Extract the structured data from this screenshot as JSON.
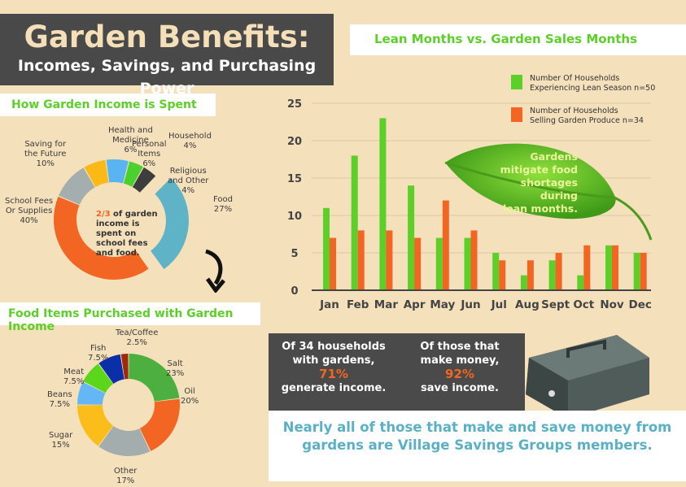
{
  "header": {
    "title": "Garden Benefits:",
    "subtitle": "Incomes, Savings, and Purchasing Power"
  },
  "colors": {
    "background": "#f5e0bc",
    "green": "#5ccf28",
    "orange": "#f26522",
    "dark": "#494949",
    "teal": "#5ab0c4"
  },
  "chart_data": [
    {
      "type": "pie",
      "title": "How Garden Income is Spent",
      "center_text": {
        "highlight": "2/3",
        "text": " of garden income is spent on school fees and food."
      },
      "slices": [
        {
          "label": "Health and\nMedicine",
          "pct": "6%",
          "value": 6,
          "color": "#fbb917"
        },
        {
          "label": "Personal\nItems",
          "pct": "6%",
          "value": 6,
          "color": "#5ab4f0"
        },
        {
          "label": "Household",
          "pct": "4%",
          "value": 4,
          "color": "#4bd12e"
        },
        {
          "label": "Religious\nand Other",
          "pct": "4%",
          "value": 4,
          "color": "#3d3d3d"
        },
        {
          "label": "Food",
          "pct": "27%",
          "value": 27,
          "color": "#5fb3c6",
          "exploded": true
        },
        {
          "label": "School Fees\nOr Supplies",
          "pct": "40%",
          "value": 40,
          "color": "#f26522"
        },
        {
          "label": "Saving for\nthe Future",
          "pct": "10%",
          "value": 10,
          "color": "#a5aeae"
        }
      ]
    },
    {
      "type": "pie",
      "title": "Food Items Purchased with Garden Income",
      "slices": [
        {
          "label": "Salt",
          "pct": "23%",
          "value": 23,
          "color": "#4caf3f"
        },
        {
          "label": "Oil",
          "pct": "20%",
          "value": 20,
          "color": "#f26522"
        },
        {
          "label": "Other",
          "pct": "17%",
          "value": 17,
          "color": "#a3adad"
        },
        {
          "label": "Sugar",
          "pct": "15%",
          "value": 15,
          "color": "#fbbd1a"
        },
        {
          "label": "Beans",
          "pct": "7.5%",
          "value": 7.5,
          "color": "#63b7f5"
        },
        {
          "label": "Meat",
          "pct": "7.5%",
          "value": 7.5,
          "color": "#5cd61b"
        },
        {
          "label": "Fish",
          "pct": "7.5%",
          "value": 7.5,
          "color": "#0a2fa8"
        },
        {
          "label": "Tea/Coffee",
          "pct": "2.5%",
          "value": 2.5,
          "color": "#9e2a0b"
        }
      ]
    },
    {
      "type": "bar",
      "title": "Lean Months vs. Garden Sales Months",
      "categories": [
        "Jan",
        "Feb",
        "Mar",
        "Apr",
        "May",
        "Jun",
        "Jul",
        "Aug",
        "Sept",
        "Oct",
        "Nov",
        "Dec"
      ],
      "yticks": [
        "0",
        "5",
        "10",
        "15",
        "20",
        "25"
      ],
      "ylim": [
        0,
        25
      ],
      "grid": true,
      "legend": "top-right",
      "series": [
        {
          "name": "Number Of Households\nExperiencing Lean Season n=50",
          "color": "#5ccf28",
          "values": [
            11,
            18,
            23,
            14,
            7,
            7,
            5,
            2,
            4,
            2,
            6,
            5
          ]
        },
        {
          "name": "Number of Households\nSelling Garden Produce n=34",
          "color": "#f26522",
          "values": [
            7,
            8,
            8,
            7,
            12,
            8,
            4,
            4,
            5,
            6,
            6,
            5
          ]
        }
      ],
      "annotation": "Gardens\nmitigate food\nshortages during\nlean months."
    }
  ],
  "stats": [
    {
      "pre": "Of 34 households\nwith gardens,",
      "pct": "71%",
      "post": "generate income."
    },
    {
      "pre": "Of those that\nmake money,",
      "pct": "92%",
      "post": "save income."
    }
  ],
  "footer": "Nearly all of those that make and save money from gardens are Village Savings Groups members."
}
